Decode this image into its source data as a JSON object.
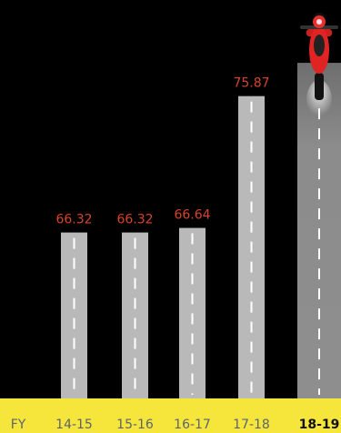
{
  "chart_data": {
    "type": "bar",
    "x_label": "FY",
    "categories": [
      "14-15",
      "15-16",
      "16-17",
      "17-18",
      "18-19"
    ],
    "values": [
      66.32,
      66.32,
      66.64,
      75.87,
      78.2
    ],
    "ylim": [
      54.7,
      82.6
    ],
    "color": "#b9b9b9",
    "label_color": "#d9432c"
  }
}
